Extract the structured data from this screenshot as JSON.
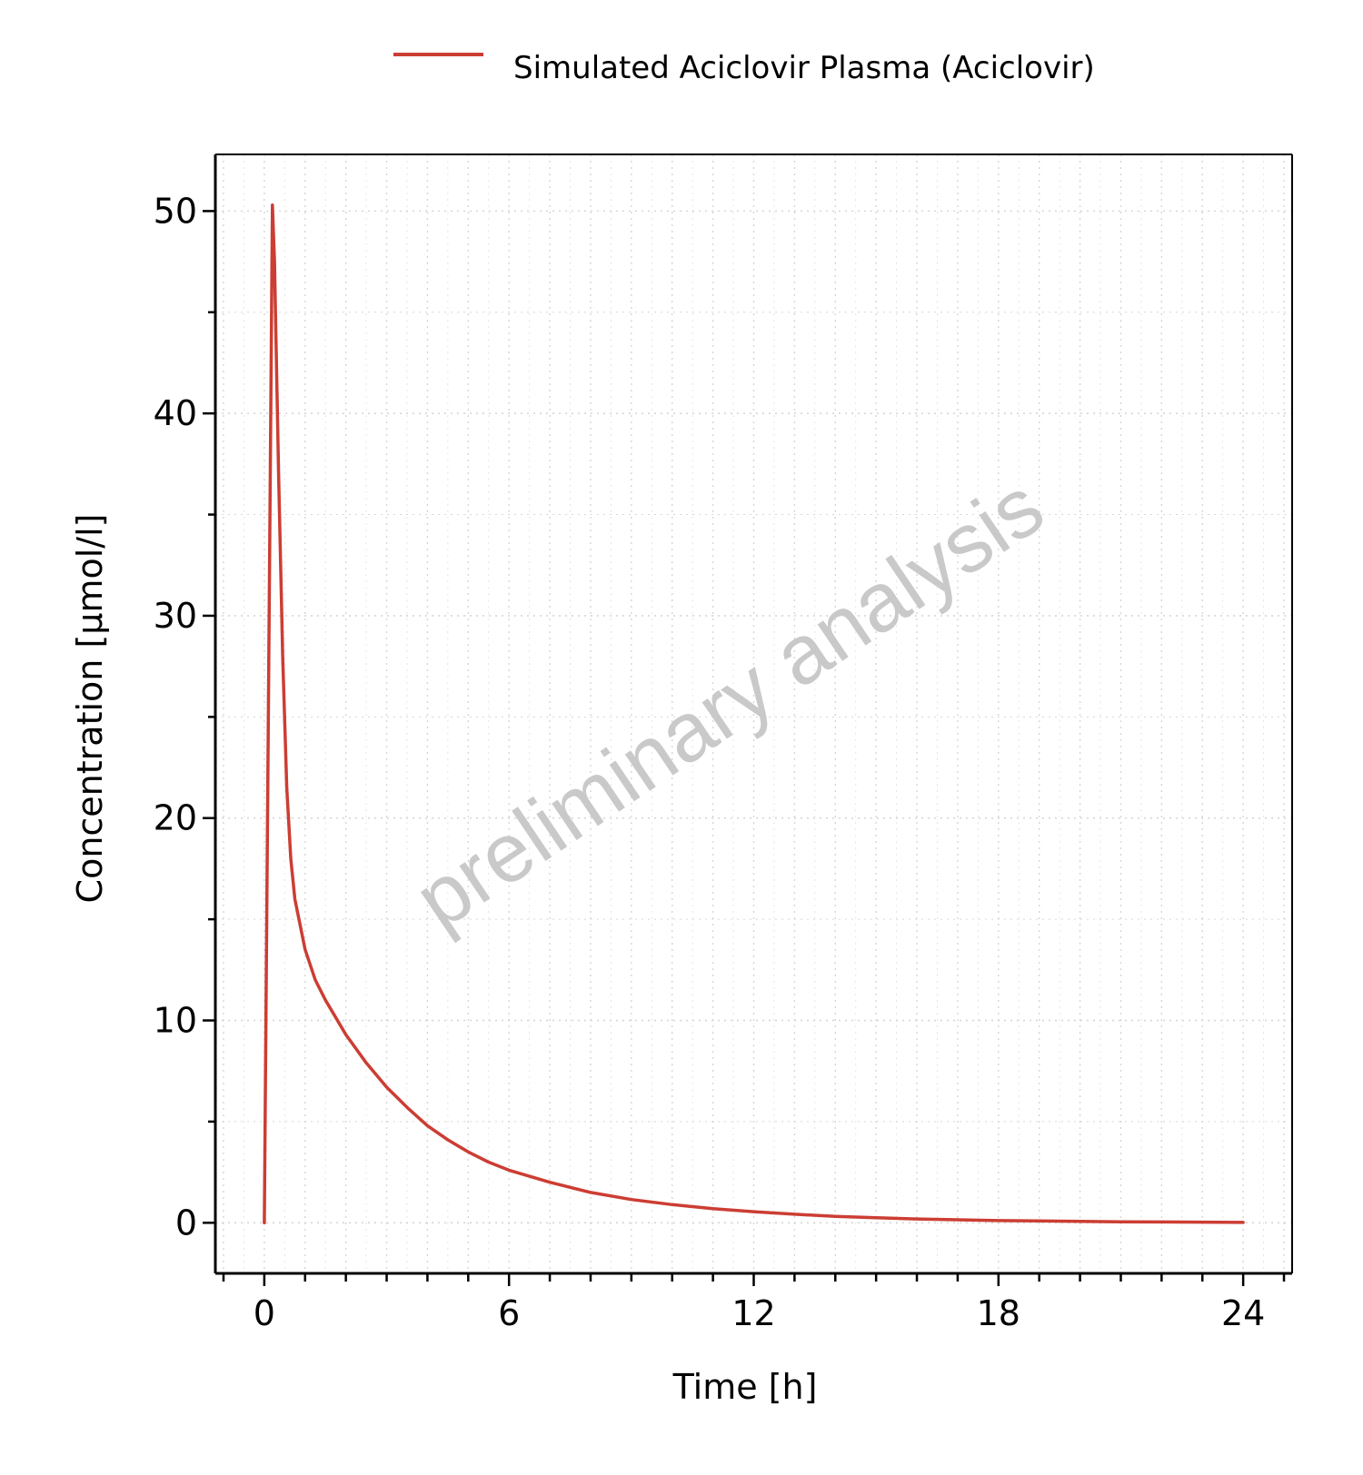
{
  "colors": {
    "series": "#cc3d33",
    "grid": "#d6d6d6",
    "axis": "#000000",
    "watermark": "#c9c9c9"
  },
  "watermark": "preliminary analysis",
  "chart_data": {
    "type": "line",
    "title": "",
    "xlabel": "Time [h]",
    "ylabel": "Concentration [µmol/l]",
    "xlim": [
      -1.2,
      25.2
    ],
    "ylim": [
      -2.5,
      52.8
    ],
    "x_ticks": [
      0,
      6,
      12,
      18,
      24
    ],
    "y_ticks": [
      0,
      10,
      20,
      30,
      40,
      50
    ],
    "x_minor_step": 1,
    "y_minor_step": 5,
    "grid": true,
    "legend": "top-center",
    "series": [
      {
        "name": "Simulated Aciclovir Plasma (Aciclovir)",
        "color": "#cc3d33",
        "x": [
          0,
          0.2,
          0.25,
          0.35,
          0.45,
          0.55,
          0.65,
          0.75,
          0.85,
          1.0,
          1.25,
          1.5,
          2.0,
          2.5,
          3.0,
          3.5,
          4.0,
          4.5,
          5.0,
          5.5,
          6.0,
          7.0,
          8.0,
          9.0,
          10.0,
          11.0,
          12.0,
          13.0,
          14.0,
          15.0,
          16.0,
          17.0,
          18.0,
          19.0,
          20.0,
          21.0,
          22.0,
          23.0,
          24.0
        ],
        "y": [
          0,
          50.3,
          47.5,
          37.0,
          28.0,
          21.5,
          18.0,
          16.0,
          15.0,
          13.5,
          12.0,
          11.0,
          9.3,
          7.9,
          6.7,
          5.7,
          4.8,
          4.1,
          3.5,
          3.0,
          2.6,
          2.0,
          1.5,
          1.15,
          0.9,
          0.7,
          0.55,
          0.42,
          0.32,
          0.25,
          0.19,
          0.15,
          0.11,
          0.09,
          0.07,
          0.05,
          0.04,
          0.03,
          0.02
        ]
      }
    ]
  }
}
